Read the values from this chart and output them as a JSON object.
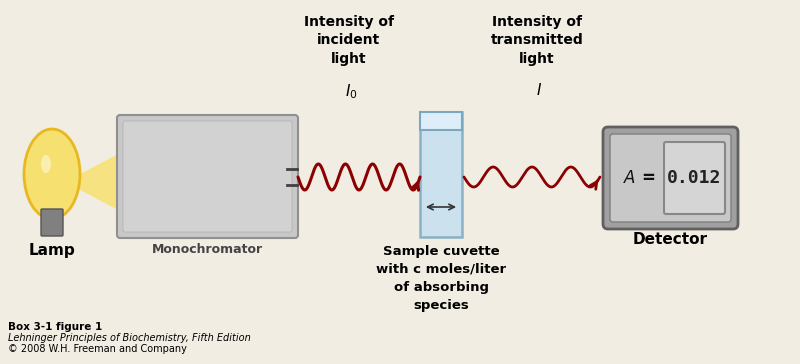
{
  "bg_color": "#f2ede3",
  "lamp_label": "Lamp",
  "monochromator_label": "Monochromator",
  "cuvette_label": "Sample cuvette\nwith c moles/liter\nof absorbing\nspecies",
  "detector_label": "Detector",
  "intensity_incident_label": "Intensity of\nincident\nlight",
  "intensity_transmitted_label": "Intensity of\ntransmitted\nlight",
  "I0_label": "$I_0$",
  "I_label": "$I$",
  "A_label": "$A$ =",
  "A_value": "0.012",
  "caption_line1": "Box 3-1 figure 1",
  "caption_line2": "Lehninger Principles of Biochemistry, Fifth Edition",
  "caption_line3": "© 2008 W.H. Freeman and Company",
  "wave_color": "#8b0000",
  "lamp_body_color_top": "#f5e070",
  "lamp_body_color_bot": "#e8b820",
  "lamp_base_color": "#808080",
  "lamp_glow_color": "#f5c400",
  "monochromator_color": "#c8c8c8",
  "monochromator_edge": "#909090",
  "cuvette_fill": "#c5dff0",
  "cuvette_edge": "#7aa8c0",
  "cuvette_top_fill": "#ddeef8",
  "detector_body": "#a0a0a0",
  "detector_face": "#c8c8c8",
  "detector_screen": "#d5d5d5",
  "detector_screen_edge": "#888888"
}
